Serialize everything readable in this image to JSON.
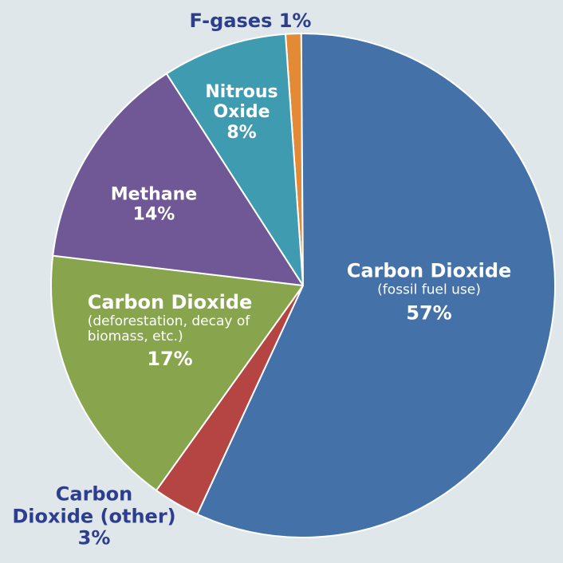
{
  "chart_data": {
    "type": "pie",
    "slices": [
      {
        "label_lines": [
          "F-gases 1%"
        ],
        "value": 1,
        "color": "#e38a36"
      },
      {
        "label_lines": [
          "Carbon Dioxide",
          "(fossil fuel use)",
          "57%"
        ],
        "value": 57,
        "color": "#4371a8"
      },
      {
        "label_lines": [
          "Carbon",
          "Dioxide (other)",
          "3%"
        ],
        "value": 3,
        "color": "#b54543"
      },
      {
        "label_lines": [
          "Carbon Dioxide",
          "(deforestation, decay of",
          "biomass, etc.)",
          "17%"
        ],
        "value": 17,
        "color": "#88a54d"
      },
      {
        "label_lines": [
          "Methane",
          "14%"
        ],
        "value": 14,
        "color": "#6f5895"
      },
      {
        "label_lines": [
          "Nitrous",
          "Oxide",
          "8%"
        ],
        "value": 8,
        "color": "#3f9bb0"
      }
    ]
  }
}
